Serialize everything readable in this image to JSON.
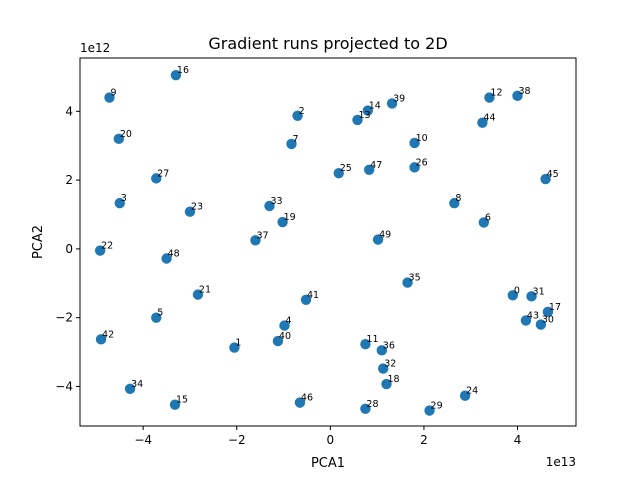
{
  "chart_data": {
    "type": "scatter",
    "title": "Gradient runs projected to 2D",
    "xlabel": "PCA1",
    "ylabel": "PCA2",
    "x_multiplier": "1e13",
    "y_multiplier": "1e12",
    "xlim": [
      -5.35,
      5.25
    ],
    "ylim": [
      -5.15,
      5.55
    ],
    "x_ticks": [
      -4,
      -2,
      0,
      2,
      4
    ],
    "y_ticks": [
      -4,
      -2,
      0,
      2,
      4
    ],
    "grid": false,
    "marker_color": "#1f77b4",
    "points": [
      {
        "label": "0",
        "x": 3.9,
        "y": -1.35
      },
      {
        "label": "1",
        "x": -2.05,
        "y": -2.87
      },
      {
        "label": "2",
        "x": -0.7,
        "y": 3.87
      },
      {
        "label": "3",
        "x": -4.5,
        "y": 1.33
      },
      {
        "label": "4",
        "x": -0.98,
        "y": -2.23
      },
      {
        "label": "5",
        "x": -3.72,
        "y": -2.0
      },
      {
        "label": "6",
        "x": 3.28,
        "y": 0.77
      },
      {
        "label": "7",
        "x": -0.83,
        "y": 3.05
      },
      {
        "label": "8",
        "x": 2.65,
        "y": 1.33
      },
      {
        "label": "9",
        "x": -4.72,
        "y": 4.4
      },
      {
        "label": "10",
        "x": 1.8,
        "y": 3.08
      },
      {
        "label": "11",
        "x": 0.75,
        "y": -2.77
      },
      {
        "label": "12",
        "x": 3.4,
        "y": 4.4
      },
      {
        "label": "13",
        "x": 0.58,
        "y": 3.75
      },
      {
        "label": "14",
        "x": 0.8,
        "y": 4.02
      },
      {
        "label": "15",
        "x": -3.32,
        "y": -4.53
      },
      {
        "label": "16",
        "x": -3.3,
        "y": 5.05
      },
      {
        "label": "17",
        "x": 4.65,
        "y": -1.83
      },
      {
        "label": "18",
        "x": 1.2,
        "y": -3.93
      },
      {
        "label": "19",
        "x": -1.02,
        "y": 0.78
      },
      {
        "label": "20",
        "x": -4.52,
        "y": 3.2
      },
      {
        "label": "21",
        "x": -2.83,
        "y": -1.33
      },
      {
        "label": "22",
        "x": -4.92,
        "y": -0.05
      },
      {
        "label": "23",
        "x": -3.0,
        "y": 1.08
      },
      {
        "label": "24",
        "x": 2.88,
        "y": -4.27
      },
      {
        "label": "25",
        "x": 0.18,
        "y": 2.2
      },
      {
        "label": "26",
        "x": 1.8,
        "y": 2.37
      },
      {
        "label": "27",
        "x": -3.72,
        "y": 2.05
      },
      {
        "label": "28",
        "x": 0.75,
        "y": -4.65
      },
      {
        "label": "29",
        "x": 2.12,
        "y": -4.7
      },
      {
        "label": "30",
        "x": 4.5,
        "y": -2.2
      },
      {
        "label": "31",
        "x": 4.3,
        "y": -1.38
      },
      {
        "label": "32",
        "x": 1.13,
        "y": -3.48
      },
      {
        "label": "33",
        "x": -1.3,
        "y": 1.25
      },
      {
        "label": "34",
        "x": -4.28,
        "y": -4.07
      },
      {
        "label": "35",
        "x": 1.65,
        "y": -0.98
      },
      {
        "label": "36",
        "x": 1.1,
        "y": -2.95
      },
      {
        "label": "37",
        "x": -1.6,
        "y": 0.25
      },
      {
        "label": "38",
        "x": 4.0,
        "y": 4.45
      },
      {
        "label": "39",
        "x": 1.32,
        "y": 4.23
      },
      {
        "label": "40",
        "x": -1.12,
        "y": -2.68
      },
      {
        "label": "41",
        "x": -0.52,
        "y": -1.48
      },
      {
        "label": "42",
        "x": -4.9,
        "y": -2.63
      },
      {
        "label": "43",
        "x": 4.18,
        "y": -2.08
      },
      {
        "label": "44",
        "x": 3.25,
        "y": 3.67
      },
      {
        "label": "45",
        "x": 4.6,
        "y": 2.03
      },
      {
        "label": "46",
        "x": -0.65,
        "y": -4.47
      },
      {
        "label": "47",
        "x": 0.83,
        "y": 2.3
      },
      {
        "label": "48",
        "x": -3.5,
        "y": -0.28
      },
      {
        "label": "49",
        "x": 1.02,
        "y": 0.27
      }
    ]
  }
}
